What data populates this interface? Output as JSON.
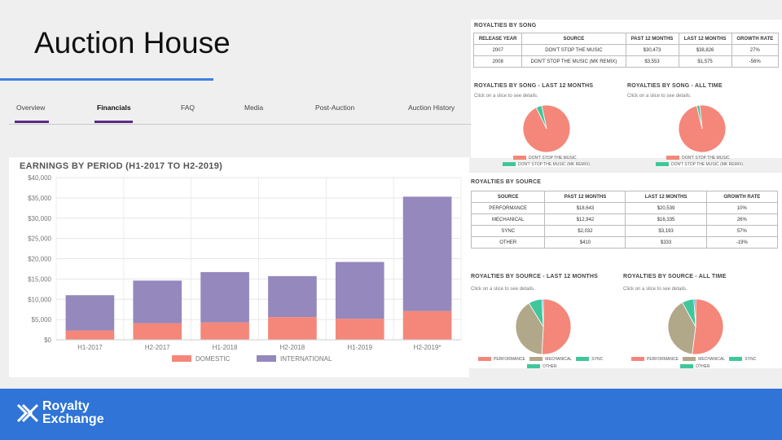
{
  "page_title": "Auction House",
  "tabs": [
    "Overview",
    "Financials",
    "FAQ",
    "Media",
    "Post-Auction",
    "Auction History"
  ],
  "active_tab": "Financials",
  "colors": {
    "accent": "#3b82e0",
    "tab_active": "#5b2a86",
    "domestic": "#f4877a",
    "international": "#9488bd",
    "mechanical": "#b1a88a",
    "sync": "#3fc79a",
    "footer": "#2f74d6"
  },
  "royalties_by_song": {
    "title": "ROYALTIES BY SONG",
    "headers": [
      "RELEASE YEAR",
      "SOURCE",
      "PAST 12 MONTHS",
      "LAST 12 MONTHS",
      "GROWTH RATE"
    ],
    "rows": [
      [
        "2007",
        "DON'T STOP THE MUSIC",
        "$30,473",
        "$38,826",
        "27%"
      ],
      [
        "2008",
        "DON'T STOP THE MUSIC (MK REMIX)",
        "$3,553",
        "$1,575",
        "-56%"
      ]
    ]
  },
  "song_pies": {
    "last12_title": "ROYALTIES BY SONG - LAST 12 MONTHS",
    "all_title": "ROYALTIES BY SONG - ALL TIME",
    "hint": "Click on a slice to see details.",
    "legend": [
      "DON'T STOP THE MUSIC",
      "DON'T STOP THE MUSIC (MK REMIX)"
    ]
  },
  "royalties_by_source": {
    "title": "ROYALTIES BY SOURCE",
    "headers": [
      "SOURCE",
      "PAST 12 MONTHS",
      "LAST 12 MONTHS",
      "GROWTH RATE"
    ],
    "rows": [
      [
        "PERFORMANCE",
        "$18,643",
        "$20,539",
        "10%"
      ],
      [
        "MECHANICAL",
        "$12,942",
        "$16,335",
        "26%"
      ],
      [
        "SYNC",
        "$2,032",
        "$3,193",
        "57%"
      ],
      [
        "OTHER",
        "$410",
        "$333",
        "-19%"
      ]
    ]
  },
  "source_pies": {
    "last12_title": "ROYALTIES BY SOURCE - LAST 12 MONTHS",
    "all_title": "ROYALTIES BY SOURCE - ALL TIME",
    "hint": "Click on a slice to see details.",
    "legend": [
      "PERFORMANCE",
      "MECHANICAL",
      "SYNC",
      "OTHER"
    ]
  },
  "footer": {
    "brand_line1": "Royalty",
    "brand_line2": "Exchange"
  },
  "chart_data": [
    {
      "type": "bar",
      "stacked": true,
      "title": "EARNINGS BY PERIOD (H1-2017 TO H2-2019)",
      "categories": [
        "H1-2017",
        "H2-2017",
        "H1-2018",
        "H2-2018",
        "H1-2019",
        "H2-2019*"
      ],
      "series": [
        {
          "name": "DOMESTIC",
          "color": "#f4877a",
          "values": [
            2300,
            4100,
            4300,
            5600,
            5200,
            7100
          ]
        },
        {
          "name": "INTERNATIONAL",
          "color": "#9488bd",
          "values": [
            8700,
            10500,
            12400,
            10100,
            14000,
            28200
          ]
        }
      ],
      "ylim": [
        0,
        40000
      ],
      "yticks": [
        "$0",
        "$5,000",
        "$10,000",
        "$15,000",
        "$20,000",
        "$25,000",
        "$30,000",
        "$35,000",
        "$40,000"
      ],
      "grid": true,
      "legend": "bottom"
    },
    {
      "type": "pie",
      "title": "ROYALTIES BY SONG - LAST 12 MONTHS",
      "labels": [
        "DON'T STOP THE MUSIC",
        "DON'T STOP THE MUSIC (MK REMIX)"
      ],
      "values": [
        38826,
        1575
      ],
      "colors": [
        "#f4877a",
        "#3fc79a"
      ]
    },
    {
      "type": "pie",
      "title": "ROYALTIES BY SONG - ALL TIME",
      "labels": [
        "DON'T STOP THE MUSIC",
        "DON'T STOP THE MUSIC (MK REMIX)"
      ],
      "values": [
        98,
        2
      ],
      "colors": [
        "#f4877a",
        "#3fc79a"
      ]
    },
    {
      "type": "pie",
      "title": "ROYALTIES BY SOURCE - LAST 12 MONTHS",
      "labels": [
        "PERFORMANCE",
        "MECHANICAL",
        "SYNC",
        "OTHER"
      ],
      "values": [
        20539,
        16335,
        3193,
        333
      ],
      "colors": [
        "#f4877a",
        "#b1a88a",
        "#3fc79a",
        "#2f9ad4"
      ]
    },
    {
      "type": "pie",
      "title": "ROYALTIES BY SOURCE - ALL TIME",
      "labels": [
        "PERFORMANCE",
        "MECHANICAL",
        "SYNC",
        "OTHER"
      ],
      "values": [
        52,
        40,
        7,
        1
      ],
      "colors": [
        "#f4877a",
        "#b1a88a",
        "#3fc79a",
        "#2f9ad4"
      ]
    }
  ]
}
